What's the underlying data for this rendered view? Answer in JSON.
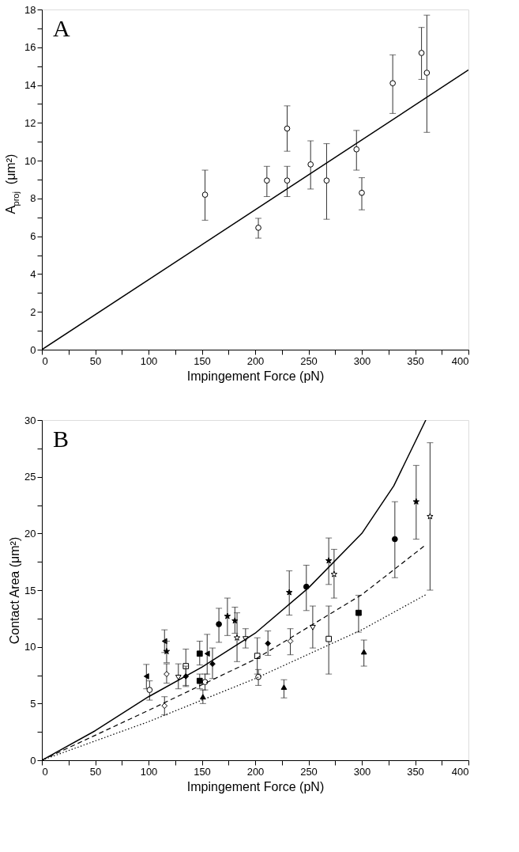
{
  "chart_data": [
    {
      "type": "scatter",
      "title": "A",
      "xlabel": "Impingement Force (pN)",
      "ylabel": "A$_{proj}$(μm²)",
      "xlim": [
        0,
        400
      ],
      "ylim": [
        0,
        18
      ],
      "xticks": [
        0,
        {
          "value": 25,
          "label": null
        },
        50,
        {
          "value": 75,
          "label": null
        },
        100,
        {
          "value": 125,
          "label": null
        },
        150,
        {
          "value": 175,
          "label": null
        },
        200,
        {
          "value": 225,
          "label": null
        },
        250,
        {
          "value": 275,
          "label": null
        },
        300,
        {
          "value": 325,
          "label": null
        },
        350,
        {
          "value": 375,
          "label": null
        },
        400
      ],
      "yticks": [
        0,
        {
          "value": 1,
          "label": null
        },
        2,
        {
          "value": 3,
          "label": null
        },
        4,
        {
          "value": 5,
          "label": null
        },
        6,
        {
          "value": 7,
          "label": null
        },
        8,
        {
          "value": 9,
          "label": null
        },
        10,
        {
          "value": 11,
          "label": null
        },
        12,
        {
          "value": 13,
          "label": null
        },
        14,
        {
          "value": 15,
          "label": null
        },
        16,
        {
          "value": 17,
          "label": null
        },
        18
      ],
      "grid": false,
      "series": [
        {
          "marker": "circle",
          "color": "#ffffff",
          "x": [
            153,
            203,
            211,
            230,
            230,
            252,
            267,
            295,
            300,
            329,
            356,
            361
          ],
          "values": [
            8.2,
            6.45,
            8.95,
            11.7,
            8.95,
            9.8,
            8.95,
            10.6,
            8.3,
            14.1,
            15.7,
            14.65
          ],
          "errors": [
            [
              6.85,
              9.5
            ],
            [
              5.9,
              6.95
            ],
            [
              8.1,
              9.7
            ],
            [
              10.5,
              12.9
            ],
            [
              8.1,
              9.7
            ],
            [
              8.5,
              11.05
            ],
            [
              6.9,
              10.9
            ],
            [
              9.5,
              11.6
            ],
            [
              7.4,
              9.1
            ],
            [
              12.5,
              15.6
            ],
            [
              14.3,
              17.05
            ],
            [
              11.5,
              17.7
            ]
          ]
        },
        {
          "type": "line",
          "color": "#000000",
          "line_style": "solid",
          "x": [
            0,
            400
          ],
          "values": [
            0,
            14.8
          ]
        }
      ]
    },
    {
      "type": "scatter",
      "title": "B",
      "xlabel": "Impingement Force (pN)",
      "ylabel": "Contact Area (μm²)",
      "xlim": [
        0,
        400
      ],
      "ylim": [
        0,
        30
      ],
      "xticks": [
        0,
        {
          "value": 25,
          "label": null
        },
        50,
        {
          "value": 75,
          "label": null
        },
        100,
        {
          "value": 125,
          "label": null
        },
        150,
        {
          "value": 175,
          "label": null
        },
        200,
        {
          "value": 225,
          "label": null
        },
        250,
        {
          "value": 275,
          "label": null
        },
        300,
        {
          "value": 325,
          "label": null
        },
        350,
        {
          "value": 375,
          "label": null
        },
        400
      ],
      "yticks": [
        0,
        {
          "value": 2.5,
          "label": null
        },
        5,
        {
          "value": 7.5,
          "label": null
        },
        10,
        {
          "value": 12.5,
          "label": null
        },
        15,
        {
          "value": 17.5,
          "label": null
        },
        20,
        {
          "value": 22.5,
          "label": null
        },
        25,
        {
          "value": 27.5,
          "label": null
        },
        30
      ],
      "grid": false,
      "series": [
        {
          "marker": "triangle-left",
          "color": "#000000",
          "x": [
            98,
            115,
            155
          ],
          "values": [
            7.4,
            10.5,
            9.4
          ],
          "errors": [
            [
              6.3,
              8.45
            ],
            [
              9.5,
              11.5
            ],
            [
              7.6,
              11.1
            ]
          ]
        },
        {
          "marker": "star",
          "color": "#000000",
          "x": [
            117,
            174,
            181,
            232,
            269,
            351
          ],
          "values": [
            9.6,
            12.7,
            12.3,
            14.8,
            17.6,
            22.8
          ],
          "errors": [
            [
              8.6,
              10.5
            ],
            [
              11.0,
              14.3
            ],
            [
              11.2,
              13.5
            ],
            [
              12.8,
              16.7
            ],
            [
              15.5,
              19.6
            ],
            [
              19.5,
              26.0
            ]
          ]
        },
        {
          "marker": "star",
          "color": "#ffffff",
          "x": [
            183,
            274,
            364
          ],
          "values": [
            10.8,
            16.4,
            21.5
          ],
          "errors": [
            [
              8.7,
              13.0
            ],
            [
              14.3,
              18.6
            ],
            [
              15.0,
              28.0
            ]
          ]
        },
        {
          "marker": "circle",
          "color": "#000000",
          "x": [
            166,
            248,
            331
          ],
          "values": [
            12.0,
            15.3,
            19.5
          ],
          "errors": [
            [
              10.4,
              13.4
            ],
            [
              13.2,
              17.2
            ],
            [
              16.1,
              22.8
            ]
          ]
        },
        {
          "marker": "circle",
          "color": "#ffffff",
          "x": [
            101,
            153,
            203
          ],
          "values": [
            6.2,
            6.9,
            7.35
          ],
          "errors": [
            [
              5.3,
              7.0
            ],
            [
              6.2,
              7.6
            ],
            [
              6.6,
              8.0
            ]
          ]
        },
        {
          "marker": "square",
          "color": "#000000",
          "x": [
            148,
            148,
            297
          ],
          "values": [
            9.4,
            7.0,
            13.0
          ],
          "errors": [
            [
              8.4,
              10.5
            ],
            [
              6.3,
              7.6
            ],
            [
              11.3,
              14.55
            ]
          ]
        },
        {
          "marker": "square",
          "color": "#ffffff",
          "x": [
            135,
            202,
            269
          ],
          "values": [
            8.3,
            9.2,
            10.7
          ],
          "errors": [
            [
              6.6,
              9.8
            ],
            [
              7.6,
              10.8
            ],
            [
              7.6,
              13.6
            ]
          ]
        },
        {
          "marker": "diamond",
          "color": "#000000",
          "x": [
            135,
            160,
            212
          ],
          "values": [
            7.4,
            8.5,
            10.3
          ],
          "errors": [
            [
              6.5,
              8.3
            ],
            [
              7.2,
              9.9
            ],
            [
              9.25,
              11.4
            ]
          ]
        },
        {
          "marker": "diamond",
          "color": "#ffffff",
          "x": [
            117,
            115,
            233
          ],
          "values": [
            7.6,
            4.8,
            10.5
          ],
          "errors": [
            [
              6.8,
              8.5
            ],
            [
              4.0,
              5.6
            ],
            [
              9.3,
              11.6
            ]
          ]
        },
        {
          "marker": "triangle-down",
          "color": "#ffffff",
          "x": [
            128,
            191,
            254
          ],
          "values": [
            7.3,
            10.7,
            11.7
          ],
          "errors": [
            [
              6.3,
              8.5
            ],
            [
              9.9,
              11.6
            ],
            [
              9.9,
              13.6
            ]
          ]
        },
        {
          "marker": "triangle",
          "color": "#000000",
          "x": [
            151,
            227,
            302
          ],
          "values": [
            5.6,
            6.45,
            9.56
          ],
          "errors": [
            [
              5.0,
              6.2
            ],
            [
              5.5,
              7.1
            ],
            [
              8.3,
              10.6
            ]
          ]
        },
        {
          "type": "line",
          "color": "#000000",
          "line_style": "solid",
          "x": [
            0,
            50,
            100,
            150,
            200,
            250,
            300,
            330,
            360
          ],
          "values": [
            0,
            2.6,
            5.6,
            8.2,
            11.2,
            15.2,
            20.0,
            24.2,
            30
          ]
        },
        {
          "type": "line",
          "color": "#000000",
          "line_style": "dashed",
          "x": [
            0,
            100,
            200,
            300,
            360
          ],
          "values": [
            0,
            4.4,
            8.9,
            14.6,
            19
          ]
        },
        {
          "type": "line",
          "color": "#000000",
          "line_style": "dotted",
          "x": [
            0,
            100,
            200,
            300,
            360
          ],
          "values": [
            0,
            3.4,
            7.2,
            11.5,
            14.6
          ]
        }
      ]
    }
  ]
}
